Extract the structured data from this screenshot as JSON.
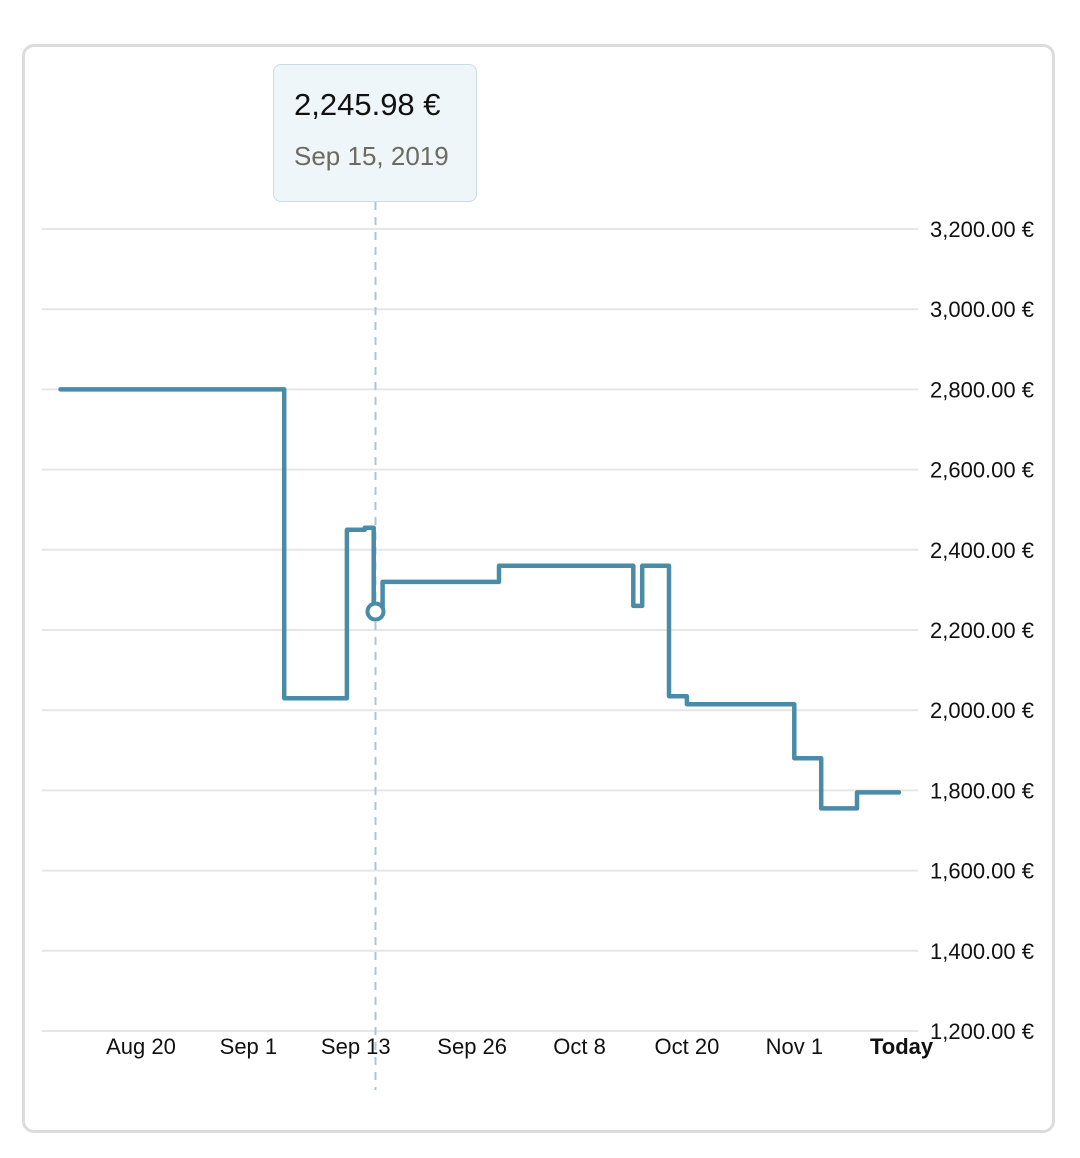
{
  "tooltip": {
    "price": "2,245.98 €",
    "date": "Sep 15, 2019"
  },
  "colors": {
    "line": "#4a8ba8",
    "grid": "#e6e6e6",
    "guide": "#a9c6d8"
  },
  "chart_data": {
    "type": "line",
    "title": "",
    "xlabel": "",
    "ylabel": "",
    "ylim": [
      1200,
      3200
    ],
    "y_ticks": [
      3200,
      3000,
      2800,
      2600,
      2400,
      2200,
      2000,
      1800,
      1600,
      1400,
      1200
    ],
    "y_tick_labels": [
      "3,200.00 €",
      "3,000.00 €",
      "2,800.00 €",
      "2,600.00 €",
      "2,400.00 €",
      "2,200.00 €",
      "2,000.00 €",
      "1,800.00 €",
      "1,600.00 €",
      "1,400.00 €",
      "1,200.00 €"
    ],
    "x_tick_labels": [
      "Aug 20",
      "Sep 1",
      "Sep 13",
      "Sep 26",
      "Oct 8",
      "Oct 20",
      "Nov 1",
      "Today"
    ],
    "x_tick_days": [
      19,
      31,
      43,
      56,
      68,
      80,
      92,
      104
    ],
    "step": true,
    "series": [
      {
        "x": [
          10,
          35,
          35,
          42,
          42,
          44,
          44,
          45,
          45,
          46,
          46,
          59,
          59,
          74,
          74,
          75,
          75,
          78,
          78,
          80,
          80,
          92,
          92,
          95,
          95,
          99,
          99,
          106
        ],
        "values": [
          2800,
          2800,
          2030,
          2030,
          2450,
          2450,
          2455,
          2455,
          2245.98,
          2245.98,
          2320,
          2320,
          2360,
          2360,
          2260,
          2260,
          2360,
          2360,
          2035,
          2035,
          2015,
          2015,
          1880,
          1880,
          1755,
          1755,
          1795,
          1795
        ]
      }
    ],
    "highlight": {
      "day": 45.2,
      "value": 2245.98
    },
    "grid": true,
    "legend": "none"
  }
}
